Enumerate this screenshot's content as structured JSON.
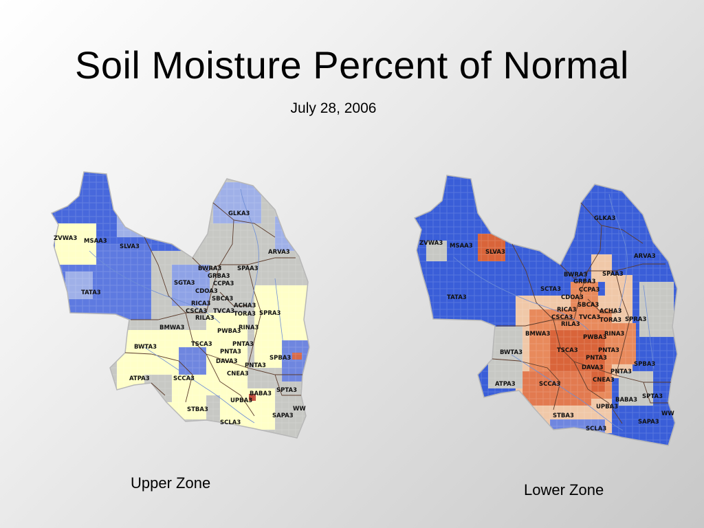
{
  "slide": {
    "title": "Soil Moisture Percent of Normal",
    "date": "July 28, 2006"
  },
  "colors": {
    "blue": "#3a5ed8",
    "light_blue": "#8fa4e6",
    "pale": "#ffffc8",
    "gray": "#c7c8c4",
    "orange": "#e88a5c",
    "red": "#d64a2a",
    "boundary": "#5b3a2a",
    "river": "#6f8fd6"
  },
  "maps": [
    {
      "id": "upper",
      "label": "Upper Zone",
      "stations": [
        "GLKA3",
        "ZVWA3",
        "MSAA3",
        "SLVA3",
        "ARVA3",
        "TATA3",
        "BWRA3",
        "SPAA3",
        "GRBA3",
        "SGTA3",
        "CCPA3",
        "CDOA3",
        "SBCA3",
        "RICA3",
        "ACHA3",
        "CSCA3",
        "TVCA3",
        "TORA3",
        "RILA3",
        "SPRA3",
        "BMWA3",
        "RINA3",
        "PWBA3",
        "BWTA3",
        "TSCA3",
        "PNTA3",
        "PNTA3",
        "DAVA3",
        "SPBA3",
        "PNTA3",
        "ATPA3",
        "SCCA3",
        "CNEA3",
        "SPTA3",
        "BABA3",
        "UPBA3",
        "STBA3",
        "WW",
        "SAPA3",
        "SCLA3"
      ]
    },
    {
      "id": "lower",
      "label": "Lower Zone",
      "stations": [
        "GLKA3",
        "ZVWA3",
        "MSAA3",
        "SLVA3",
        "ARVA3",
        "TATA3",
        "BWRA3",
        "SPAA3",
        "GRBA3",
        "SCTA3",
        "CCPA3",
        "CDOA3",
        "SBCA3",
        "RICA3",
        "ACHA3",
        "CSCA3",
        "TVCA3",
        "TORA3",
        "RILA3",
        "SPRA3",
        "BMWA3",
        "PWBA3",
        "RINA3",
        "BWTA3",
        "TSCA3",
        "PNTA3",
        "PNTA3",
        "SPBA3",
        "DAVA3",
        "CNEA3",
        "PNTA3",
        "ATPA3",
        "SCCA3",
        "SPTA3",
        "BABA3",
        "UPBA3",
        "WW",
        "STBA3",
        "SAPA3",
        "SCLA3"
      ]
    }
  ]
}
